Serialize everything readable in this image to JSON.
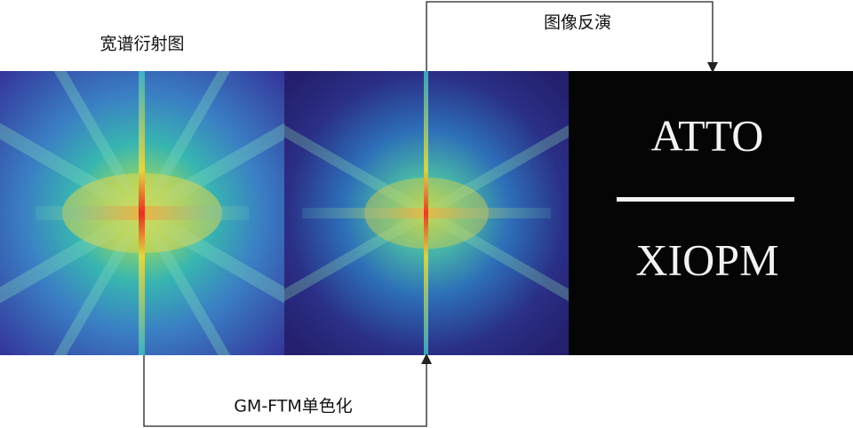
{
  "labels": {
    "broadband": "宽谱衍射图",
    "inversion": "图像反演",
    "monochromatization": "GM-FTM单色化"
  },
  "reconstruction": {
    "line1": "ATTO",
    "line2": "XIOPM"
  }
}
